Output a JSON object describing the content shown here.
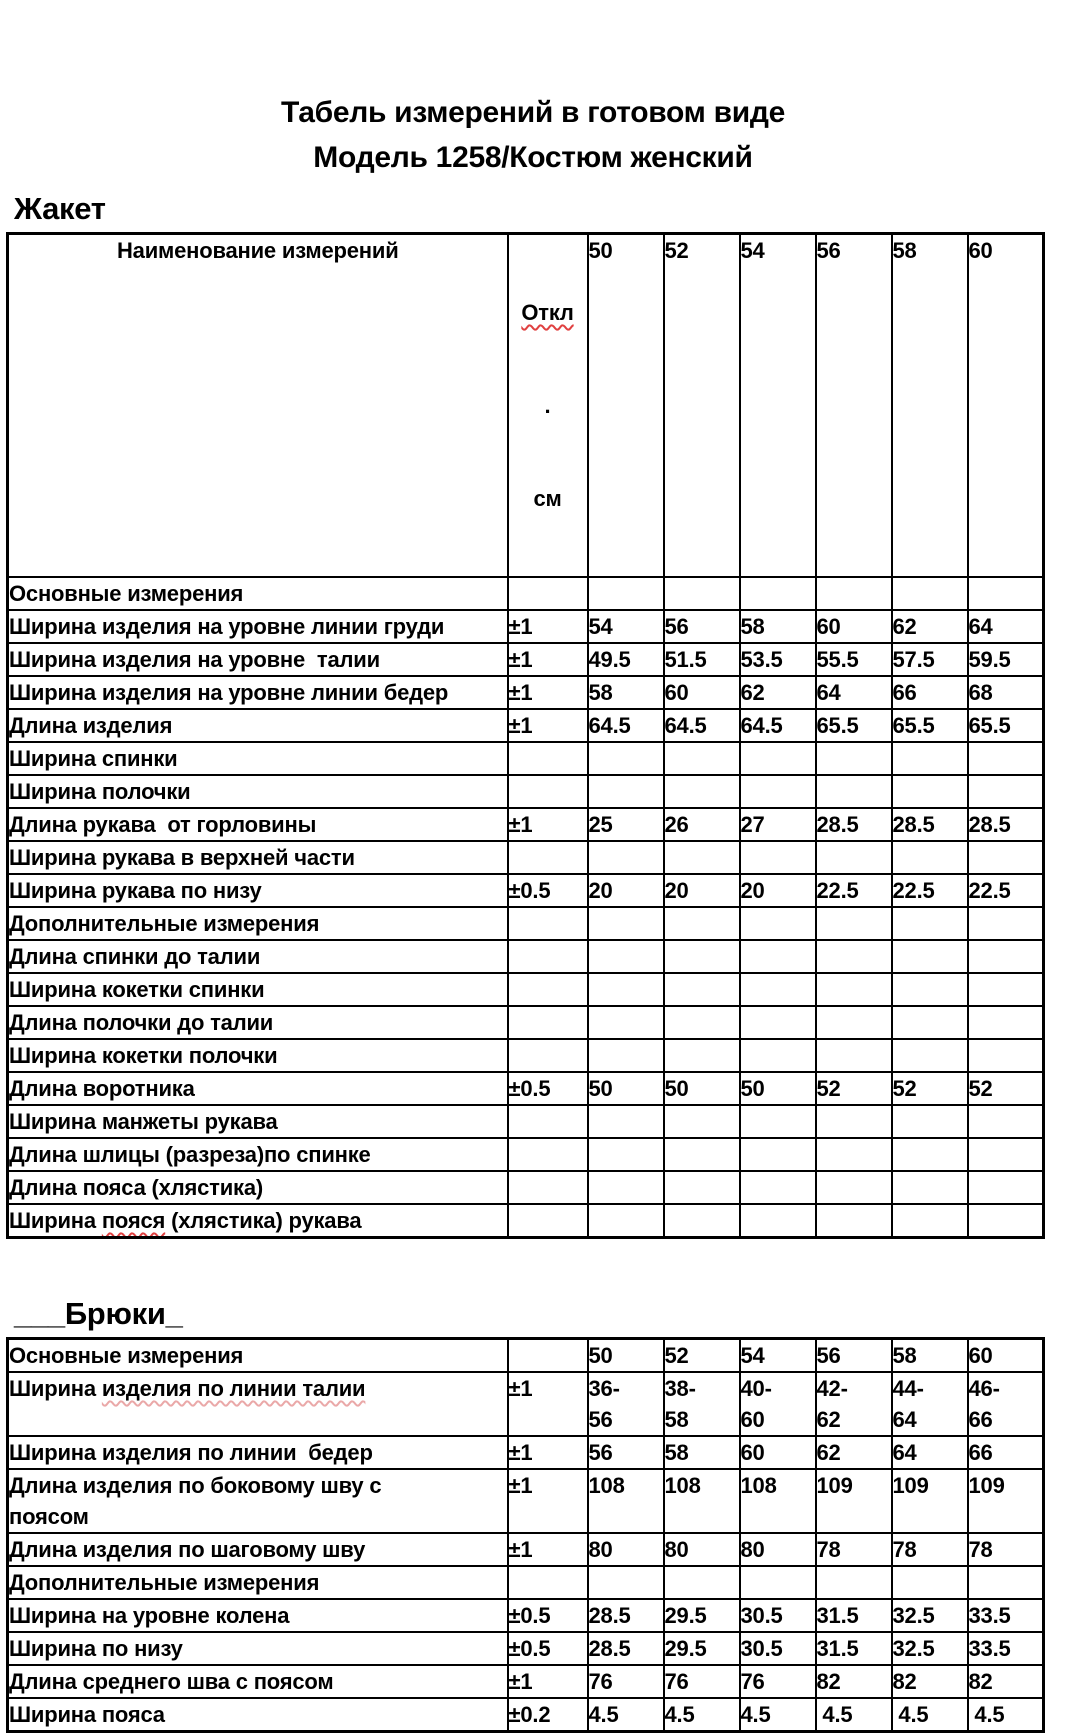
{
  "title": {
    "line1": "Табель измерений в готовом виде",
    "line2": "Модель 1258/Костюм женский"
  },
  "colors": {
    "spellcheck_red": "#e04040",
    "spellcheck_faint": "#eaa8a8"
  },
  "jacket": {
    "heading": "Жакет",
    "header": {
      "name": "Наименование измерений",
      "tol_line1": "Откл",
      "tol_line2": ".",
      "tol_line3": "см",
      "sizes": [
        "50",
        "52",
        "54",
        "56",
        "58",
        "60"
      ]
    },
    "rows": [
      {
        "label": "Основные измерения",
        "tol": "",
        "values": [
          "",
          "",
          "",
          "",
          "",
          ""
        ]
      },
      {
        "label": "Ширина изделия на уровне линии груди",
        "tol": "±1",
        "values": [
          "54",
          "56",
          "58",
          "60",
          "62",
          "64"
        ]
      },
      {
        "label": "Ширина изделия на уровне  талии",
        "tol": "±1",
        "values": [
          "49.5",
          "51.5",
          "53.5",
          "55.5",
          "57.5",
          "59.5"
        ]
      },
      {
        "label": "Ширина изделия на уровне линии бедер",
        "tol": "±1",
        "values": [
          "58",
          "60",
          "62",
          "64",
          "66",
          "68"
        ]
      },
      {
        "label": "Длина изделия",
        "tol": "±1",
        "values": [
          "64.5",
          "64.5",
          "64.5",
          "65.5",
          "65.5",
          "65.5"
        ]
      },
      {
        "label": "Ширина спинки",
        "tol": "",
        "values": [
          "",
          "",
          "",
          "",
          "",
          ""
        ]
      },
      {
        "label": "Ширина полочки",
        "tol": "",
        "values": [
          "",
          "",
          "",
          "",
          "",
          ""
        ]
      },
      {
        "label": "Длина рукава  от горловины",
        "tol": "±1",
        "values": [
          "25",
          "26",
          "27",
          "28.5",
          "28.5",
          "28.5"
        ]
      },
      {
        "label": "Ширина рукава в верхней части",
        "tol": "",
        "values": [
          "",
          "",
          "",
          "",
          "",
          ""
        ]
      },
      {
        "label": "Ширина рукава по низу",
        "tol": "±0.5",
        "values": [
          "20",
          "20",
          "20",
          "22.5",
          "22.5",
          "22.5"
        ]
      },
      {
        "label": "Дополнительные измерения",
        "tol": "",
        "values": [
          "",
          "",
          "",
          "",
          "",
          ""
        ]
      },
      {
        "label": "Длина спинки до талии",
        "tol": "",
        "values": [
          "",
          "",
          "",
          "",
          "",
          ""
        ]
      },
      {
        "label": "Ширина кокетки спинки",
        "tol": "",
        "values": [
          "",
          "",
          "",
          "",
          "",
          ""
        ]
      },
      {
        "label": "Длина полочки до талии",
        "tol": "",
        "values": [
          "",
          "",
          "",
          "",
          "",
          ""
        ]
      },
      {
        "label": "Ширина кокетки полочки",
        "tol": "",
        "values": [
          "",
          "",
          "",
          "",
          "",
          ""
        ]
      },
      {
        "label": "Длина воротника",
        "tol": "±0.5",
        "values": [
          "50",
          "50",
          "50",
          "52",
          "52",
          "52"
        ]
      },
      {
        "label": "Ширина манжеты рукава",
        "tol": "",
        "values": [
          "",
          "",
          "",
          "",
          "",
          ""
        ]
      },
      {
        "label": "Длина шлицы (разреза)по спинке",
        "tol": "",
        "values": [
          "",
          "",
          "",
          "",
          "",
          ""
        ]
      },
      {
        "label": "Длина пояса (хлястика)",
        "tol": "",
        "values": [
          "",
          "",
          "",
          "",
          "",
          ""
        ]
      },
      {
        "label": "Ширина пояся (хлястика) рукава",
        "wavy": "пояся",
        "tol": "",
        "values": [
          "",
          "",
          "",
          "",
          "",
          ""
        ]
      }
    ]
  },
  "trousers": {
    "heading": "___Брюки_",
    "rows": [
      {
        "label": "Основные измерения",
        "tol": "",
        "values": [
          "50",
          "52",
          "54",
          "56",
          "58",
          "60"
        ]
      },
      {
        "label": "Ширина изделия по линии талии",
        "wavy": "изделия по линии талии",
        "faint": true,
        "tol": "±1",
        "values": [
          "36-\n56",
          "38-\n58",
          "40-\n60",
          "42-\n62",
          "44-\n64",
          "46-\n66"
        ]
      },
      {
        "label": "Ширина изделия по линии  бедер",
        "tol": "±1",
        "values": [
          "56",
          "58",
          "60",
          "62",
          "64",
          "66"
        ]
      },
      {
        "label": "Длина изделия по боковому шву с\nпоясом",
        "tol": "±1",
        "values": [
          "108",
          "108",
          "108",
          "109",
          "109",
          "109"
        ]
      },
      {
        "label": "Длина изделия по шаговому шву",
        "tol": "±1",
        "values": [
          "80",
          "80",
          "80",
          "78",
          "78",
          "78"
        ]
      },
      {
        "label": "Дополнительные измерения",
        "tol": "",
        "values": [
          "",
          "",
          "",
          "",
          "",
          ""
        ]
      },
      {
        "label": "Ширина на уровне колена",
        "tol": "±0.5",
        "values": [
          "28.5",
          "29.5",
          "30.5",
          "31.5",
          "32.5",
          "33.5"
        ]
      },
      {
        "label": "Ширина по низу",
        "tol": "±0.5",
        "values": [
          "28.5",
          "29.5",
          "30.5",
          "31.5",
          "32.5",
          "33.5"
        ]
      },
      {
        "label": "Длина среднего шва с поясом",
        "tol": "±1",
        "values": [
          "76",
          "76",
          "76",
          "82",
          "82",
          "82"
        ]
      },
      {
        "label": "Ширина пояса",
        "tol": "±0.2",
        "values": [
          "4.5",
          "4.5",
          "4.5",
          " 4.5",
          " 4.5",
          " 4.5"
        ]
      }
    ]
  }
}
